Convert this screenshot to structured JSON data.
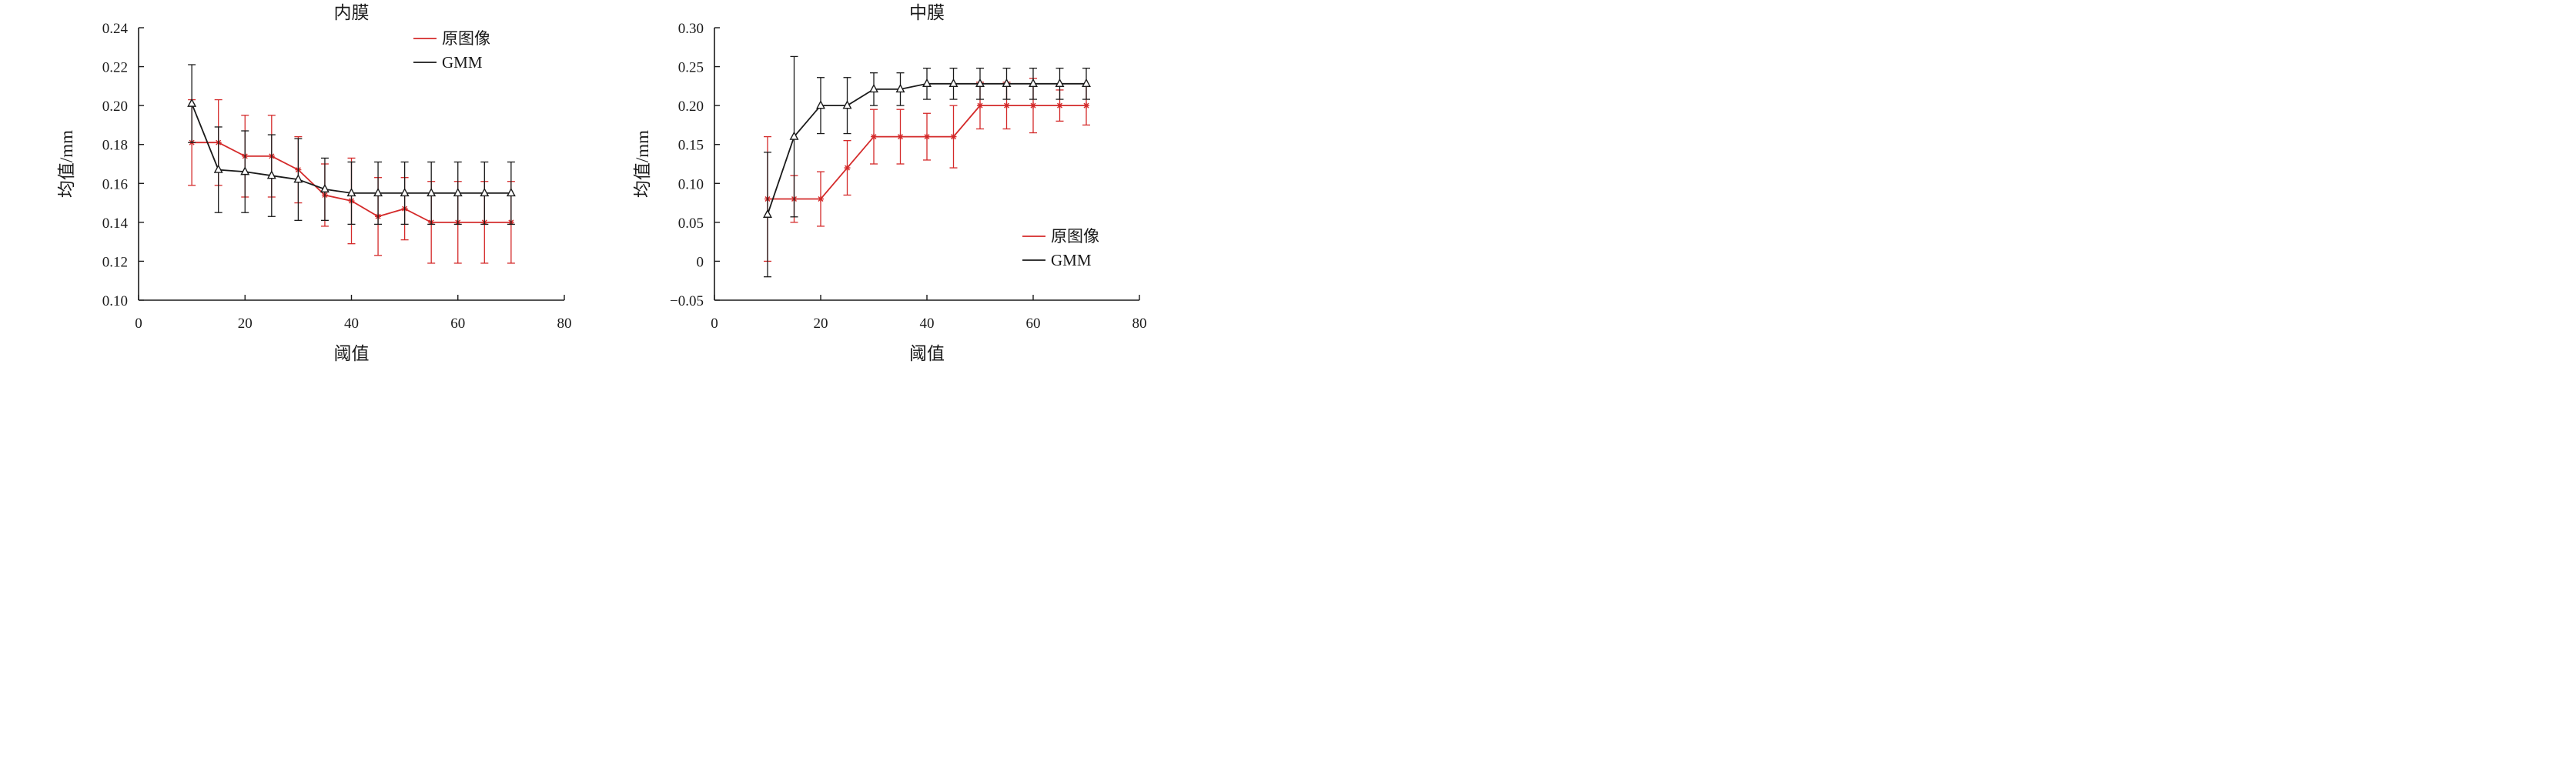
{
  "chart_data": [
    {
      "type": "line",
      "title": "内膜",
      "xlabel": "阈值",
      "ylabel": "均值/mm",
      "xlim": [
        0,
        80
      ],
      "ylim": [
        0.1,
        0.24
      ],
      "x_ticks": [
        "0",
        "20",
        "40",
        "60",
        "80"
      ],
      "y_ticks": [
        "0.10",
        "0.12",
        "0.14",
        "0.16",
        "0.18",
        "0.20",
        "0.22",
        "0.24"
      ],
      "grid": false,
      "error_bars": true,
      "legend_position": "top-right",
      "x": [
        10,
        15,
        20,
        25,
        30,
        35,
        40,
        45,
        50,
        55,
        60,
        65,
        70
      ],
      "series": [
        {
          "name": "原图像",
          "color": "#d42a2a",
          "marker": "star",
          "values": [
            0.181,
            0.181,
            0.174,
            0.174,
            0.167,
            0.154,
            0.151,
            0.143,
            0.147,
            0.14,
            0.14,
            0.14,
            0.14
          ],
          "errors": [
            0.022,
            0.022,
            0.021,
            0.021,
            0.017,
            0.016,
            0.022,
            0.02,
            0.016,
            0.021,
            0.021,
            0.021,
            0.021
          ]
        },
        {
          "name": "GMM",
          "color": "#1a1a1a",
          "marker": "triangle",
          "values": [
            0.201,
            0.167,
            0.166,
            0.164,
            0.162,
            0.157,
            0.155,
            0.155,
            0.155,
            0.155,
            0.155,
            0.155,
            0.155
          ],
          "errors": [
            0.02,
            0.022,
            0.021,
            0.021,
            0.021,
            0.016,
            0.016,
            0.016,
            0.016,
            0.016,
            0.016,
            0.016,
            0.016
          ]
        }
      ]
    },
    {
      "type": "line",
      "title": "中膜",
      "xlabel": "阈值",
      "ylabel": "均值/mm",
      "xlim": [
        0,
        80
      ],
      "ylim": [
        -0.05,
        0.3
      ],
      "x_ticks": [
        "0",
        "20",
        "40",
        "60",
        "80"
      ],
      "y_ticks": [
        "−0.05",
        "0",
        "0.05",
        "0.10",
        "0.15",
        "0.20",
        "0.25",
        "0.30"
      ],
      "grid": false,
      "error_bars": true,
      "legend_position": "bottom-right",
      "x": [
        10,
        15,
        20,
        25,
        30,
        35,
        40,
        45,
        50,
        55,
        60,
        65,
        70
      ],
      "series": [
        {
          "name": "原图像",
          "color": "#d42a2a",
          "marker": "star",
          "values": [
            0.08,
            0.08,
            0.08,
            0.12,
            0.16,
            0.16,
            0.16,
            0.16,
            0.2,
            0.2,
            0.2,
            0.2,
            0.2
          ],
          "errors": [
            0.08,
            0.03,
            0.035,
            0.035,
            0.035,
            0.035,
            0.03,
            0.04,
            0.03,
            0.03,
            0.035,
            0.02,
            0.025
          ]
        },
        {
          "name": "GMM",
          "color": "#1a1a1a",
          "marker": "triangle",
          "values": [
            0.06,
            0.16,
            0.2,
            0.2,
            0.221,
            0.221,
            0.228,
            0.228,
            0.228,
            0.228,
            0.228,
            0.228,
            0.228
          ],
          "errors": [
            0.08,
            0.103,
            0.036,
            0.036,
            0.021,
            0.021,
            0.02,
            0.02,
            0.02,
            0.02,
            0.02,
            0.02,
            0.02
          ]
        }
      ]
    }
  ]
}
